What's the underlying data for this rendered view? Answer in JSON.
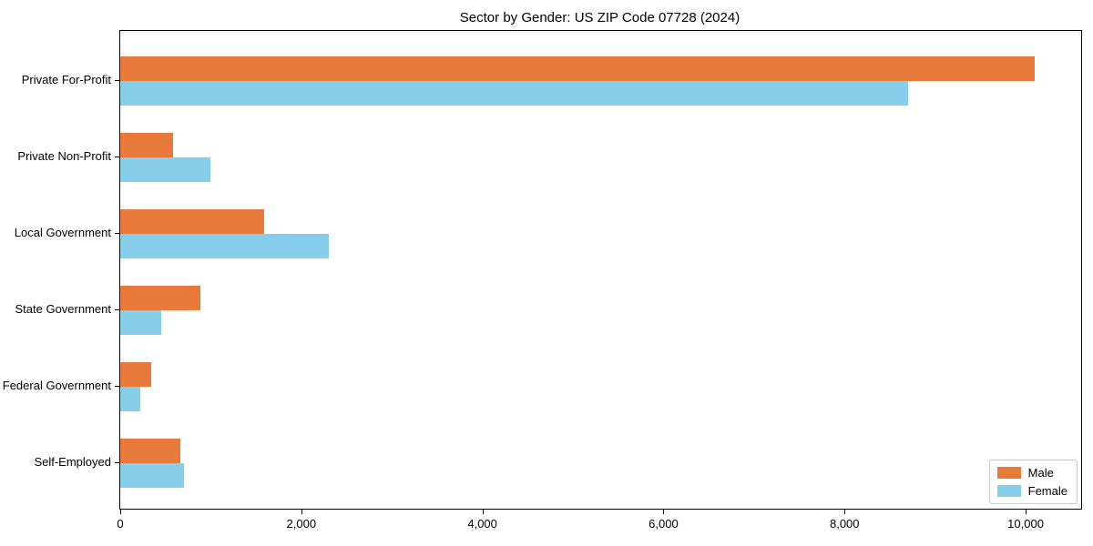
{
  "chart_data": {
    "type": "bar",
    "orientation": "horizontal",
    "title": "Sector by Gender: US ZIP Code 07728 (2024)",
    "categories": [
      "Private For-Profit",
      "Private Non-Profit",
      "Local Government",
      "State Government",
      "Federal Government",
      "Self-Employed"
    ],
    "series": [
      {
        "name": "Male",
        "color": "#e87a3c",
        "values": [
          10100,
          580,
          1590,
          890,
          340,
          660
        ]
      },
      {
        "name": "Female",
        "color": "#87ceeb",
        "values": [
          8700,
          1000,
          2300,
          450,
          220,
          700
        ]
      }
    ],
    "xlabel": "",
    "ylabel": "",
    "xlim": [
      0,
      10613
    ],
    "xticks": [
      0,
      2000,
      4000,
      6000,
      8000,
      10000
    ],
    "xtick_labels": [
      "0",
      "2,000",
      "4,000",
      "6,000",
      "8,000",
      "10,000"
    ],
    "grid": false,
    "legend": {
      "position": "lower right"
    },
    "colors": {
      "axis": "#000000",
      "background": "#ffffff"
    }
  }
}
